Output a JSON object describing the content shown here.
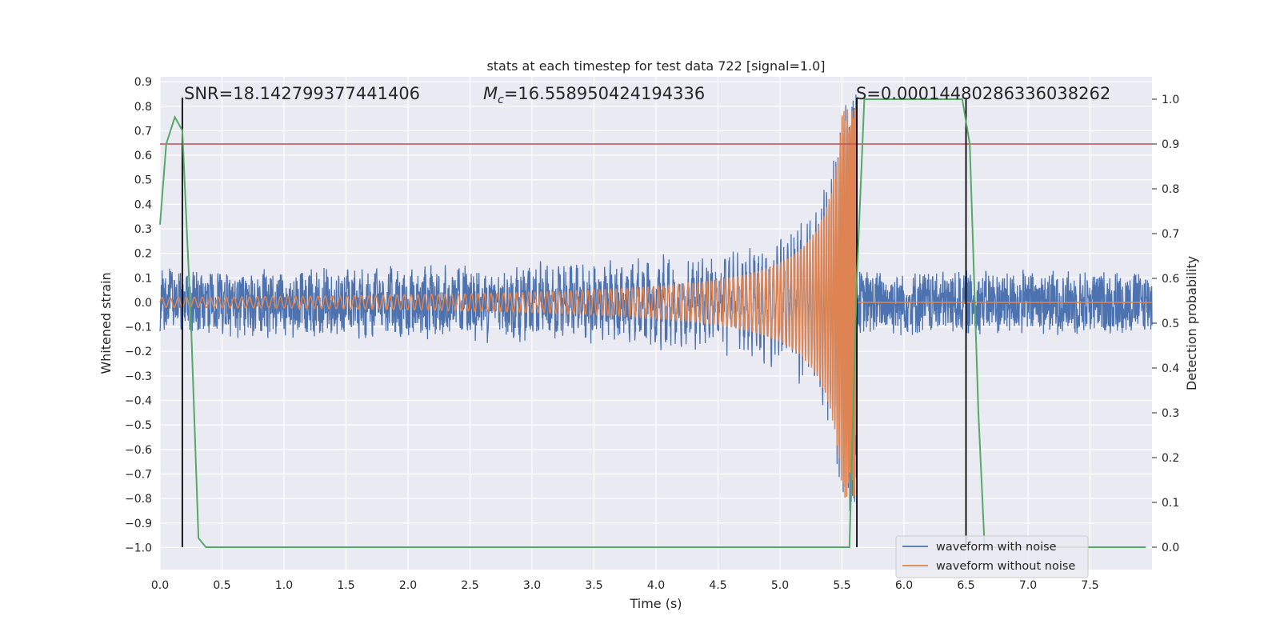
{
  "chart_data": {
    "type": "line",
    "title": "stats at each timestep for test data 722 [signal=1.0]",
    "xlabel": "Time (s)",
    "ylabel_left": "Whitened strain",
    "ylabel_right": "Detection probability",
    "xlim": [
      0.0,
      8.0
    ],
    "ylim_left": [
      -1.09,
      0.92
    ],
    "ylim_right": [
      -0.05,
      1.05
    ],
    "x_ticks": [
      "0.0",
      "0.5",
      "1.0",
      "1.5",
      "2.0",
      "2.5",
      "3.0",
      "3.5",
      "4.0",
      "4.5",
      "5.0",
      "5.5",
      "6.0",
      "6.5",
      "7.0",
      "7.5"
    ],
    "y_ticks_left": [
      "0.9",
      "0.8",
      "0.7",
      "0.6",
      "0.5",
      "0.4",
      "0.3",
      "0.2",
      "0.1",
      "0.0",
      "−0.1",
      "−0.2",
      "−0.3",
      "−0.4",
      "−0.5",
      "−0.6",
      "−0.7",
      "−0.8",
      "−0.9",
      "−1.0"
    ],
    "y_ticks_right": [
      "1.0",
      "0.9",
      "0.8",
      "0.7",
      "0.6",
      "0.5",
      "0.4",
      "0.3",
      "0.2",
      "0.1",
      "0.0"
    ],
    "annotations": {
      "snr": "SNR=18.142799377441406",
      "mc_symbol": "M",
      "mc_sub": "c",
      "mc_value": "=16.558950424194336",
      "s": "S=0.00014480286336038262"
    },
    "threshold_probability": 0.9,
    "vertical_lines_x": [
      0.18,
      5.62,
      6.5
    ],
    "legend": {
      "placement": "lower-right",
      "entries": [
        "waveform with noise",
        "waveform without noise"
      ]
    },
    "colors": {
      "with_noise": "#4c72b0",
      "without_noise": "#dd8452",
      "probability": "#55a868",
      "threshold": "#c44e52",
      "vlines": "#000000",
      "plot_bg": "#eaeaf2",
      "grid": "#ffffff"
    },
    "series": [
      {
        "name": "waveform with noise",
        "description_values": "noise band roughly ±0.15 throughout; chirp grows to ~0.8 near 5.62 s merger, then noise only after",
        "noise_amplitude": 0.14,
        "merger_time": 5.62
      },
      {
        "name": "waveform without noise",
        "chirp_start_amplitude": 0.02,
        "chirp_peak_amplitude": 0.8,
        "merger_time": 5.62
      },
      {
        "name": "detection probability",
        "x": [
          0.0,
          0.05,
          0.12,
          0.18,
          0.25,
          0.31,
          0.37,
          5.56,
          5.62,
          5.68,
          6.47,
          6.53,
          6.6,
          6.65,
          7.95
        ],
        "values": [
          0.72,
          0.9,
          0.96,
          0.93,
          0.5,
          0.02,
          0.0,
          0.0,
          0.6,
          1.0,
          1.0,
          0.9,
          0.3,
          0.0,
          0.0
        ]
      }
    ]
  }
}
